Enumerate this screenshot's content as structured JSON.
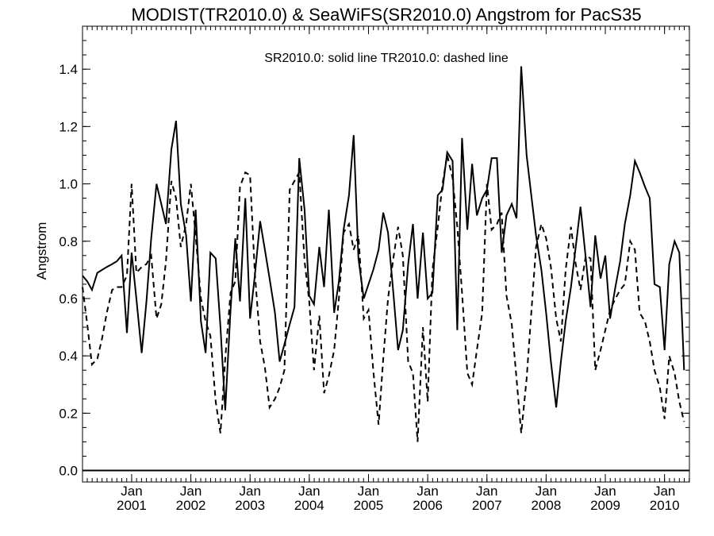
{
  "chart_data": {
    "type": "line",
    "title": "MODIST(TR2010.0) & SeaWiFS(SR2010.0)  Angstrom for PacS35",
    "annotation": "SR2010.0: solid line   TR2010.0: dashed line",
    "ylabel": "Angstrom",
    "xlim": [
      2000.17,
      2010.42
    ],
    "ylim": [
      -0.04,
      1.55
    ],
    "yticks": [
      0.0,
      0.2,
      0.4,
      0.6,
      0.8,
      1.0,
      1.2,
      1.4
    ],
    "ytick_labels": [
      "0.0",
      "0.2",
      "0.4",
      "0.6",
      "0.8",
      "1.0",
      "1.2",
      "1.4"
    ],
    "xticks": [
      {
        "x": 2001.0,
        "line1": "Jan",
        "line2": "2001"
      },
      {
        "x": 2002.0,
        "line1": "Jan",
        "line2": "2002"
      },
      {
        "x": 2003.0,
        "line1": "Jan",
        "line2": "2003"
      },
      {
        "x": 2004.0,
        "line1": "Jan",
        "line2": "2004"
      },
      {
        "x": 2005.0,
        "line1": "Jan",
        "line2": "2005"
      },
      {
        "x": 2006.0,
        "line1": "Jan",
        "line2": "2006"
      },
      {
        "x": 2007.0,
        "line1": "Jan",
        "line2": "2007"
      },
      {
        "x": 2008.0,
        "line1": "Jan",
        "line2": "2008"
      },
      {
        "x": 2009.0,
        "line1": "Jan",
        "line2": "2009"
      },
      {
        "x": 2010.0,
        "line1": "Jan",
        "line2": "2010"
      }
    ],
    "zero_line": 0.0,
    "series": [
      {
        "name": "SR2010.0",
        "style": "solid",
        "color": "#000000",
        "points": [
          [
            2000.17,
            0.68
          ],
          [
            2000.25,
            0.66
          ],
          [
            2000.33,
            0.63
          ],
          [
            2000.42,
            0.69
          ],
          [
            2000.5,
            0.7
          ],
          [
            2000.58,
            0.71
          ],
          [
            2000.67,
            0.72
          ],
          [
            2000.75,
            0.73
          ],
          [
            2000.83,
            0.75
          ],
          [
            2000.92,
            0.48
          ],
          [
            2001.0,
            0.76
          ],
          [
            2001.08,
            0.6
          ],
          [
            2001.17,
            0.41
          ],
          [
            2001.25,
            0.59
          ],
          [
            2001.33,
            0.81
          ],
          [
            2001.42,
            1.0
          ],
          [
            2001.5,
            0.93
          ],
          [
            2001.58,
            0.86
          ],
          [
            2001.67,
            1.12
          ],
          [
            2001.75,
            1.22
          ],
          [
            2001.83,
            0.93
          ],
          [
            2001.92,
            0.82
          ],
          [
            2002.0,
            0.59
          ],
          [
            2002.08,
            0.91
          ],
          [
            2002.17,
            0.52
          ],
          [
            2002.25,
            0.41
          ],
          [
            2002.33,
            0.76
          ],
          [
            2002.42,
            0.74
          ],
          [
            2002.5,
            0.5
          ],
          [
            2002.58,
            0.21
          ],
          [
            2002.67,
            0.56
          ],
          [
            2002.75,
            0.81
          ],
          [
            2002.83,
            0.59
          ],
          [
            2002.92,
            0.95
          ],
          [
            2003.0,
            0.53
          ],
          [
            2003.08,
            0.68
          ],
          [
            2003.17,
            0.87
          ],
          [
            2003.25,
            0.77
          ],
          [
            2003.33,
            0.67
          ],
          [
            2003.42,
            0.55
          ],
          [
            2003.5,
            0.38
          ],
          [
            2003.58,
            0.44
          ],
          [
            2003.67,
            0.51
          ],
          [
            2003.75,
            0.57
          ],
          [
            2003.83,
            1.09
          ],
          [
            2003.92,
            0.91
          ],
          [
            2004.0,
            0.61
          ],
          [
            2004.08,
            0.58
          ],
          [
            2004.17,
            0.78
          ],
          [
            2004.25,
            0.64
          ],
          [
            2004.33,
            0.91
          ],
          [
            2004.42,
            0.55
          ],
          [
            2004.5,
            0.66
          ],
          [
            2004.58,
            0.84
          ],
          [
            2004.67,
            0.96
          ],
          [
            2004.75,
            1.17
          ],
          [
            2004.83,
            0.74
          ],
          [
            2004.92,
            0.6
          ],
          [
            2005.0,
            0.65
          ],
          [
            2005.08,
            0.7
          ],
          [
            2005.17,
            0.77
          ],
          [
            2005.25,
            0.9
          ],
          [
            2005.33,
            0.83
          ],
          [
            2005.42,
            0.62
          ],
          [
            2005.5,
            0.42
          ],
          [
            2005.58,
            0.49
          ],
          [
            2005.67,
            0.72
          ],
          [
            2005.75,
            0.86
          ],
          [
            2005.83,
            0.6
          ],
          [
            2005.92,
            0.83
          ],
          [
            2006.0,
            0.6
          ],
          [
            2006.08,
            0.62
          ],
          [
            2006.17,
            0.96
          ],
          [
            2006.25,
            0.98
          ],
          [
            2006.33,
            1.11
          ],
          [
            2006.42,
            1.08
          ],
          [
            2006.5,
            0.49
          ],
          [
            2006.58,
            1.16
          ],
          [
            2006.67,
            0.84
          ],
          [
            2006.75,
            1.07
          ],
          [
            2006.83,
            0.89
          ],
          [
            2006.92,
            0.95
          ],
          [
            2007.0,
            0.98
          ],
          [
            2007.08,
            1.09
          ],
          [
            2007.17,
            1.09
          ],
          [
            2007.25,
            0.76
          ],
          [
            2007.33,
            0.89
          ],
          [
            2007.42,
            0.93
          ],
          [
            2007.5,
            0.88
          ],
          [
            2007.58,
            1.41
          ],
          [
            2007.67,
            1.1
          ],
          [
            2007.75,
            0.96
          ],
          [
            2007.83,
            0.82
          ],
          [
            2007.92,
            0.7
          ],
          [
            2008.0,
            0.55
          ],
          [
            2008.08,
            0.38
          ],
          [
            2008.17,
            0.22
          ],
          [
            2008.25,
            0.38
          ],
          [
            2008.33,
            0.52
          ],
          [
            2008.42,
            0.64
          ],
          [
            2008.5,
            0.78
          ],
          [
            2008.58,
            0.92
          ],
          [
            2008.67,
            0.74
          ],
          [
            2008.75,
            0.57
          ],
          [
            2008.83,
            0.82
          ],
          [
            2008.92,
            0.67
          ],
          [
            2009.0,
            0.75
          ],
          [
            2009.08,
            0.53
          ],
          [
            2009.17,
            0.64
          ],
          [
            2009.25,
            0.73
          ],
          [
            2009.33,
            0.86
          ],
          [
            2009.42,
            0.96
          ],
          [
            2009.5,
            1.08
          ],
          [
            2009.58,
            1.04
          ],
          [
            2009.67,
            0.99
          ],
          [
            2009.75,
            0.95
          ],
          [
            2009.83,
            0.65
          ],
          [
            2009.92,
            0.64
          ],
          [
            2010.0,
            0.42
          ],
          [
            2010.08,
            0.72
          ],
          [
            2010.17,
            0.8
          ],
          [
            2010.25,
            0.76
          ],
          [
            2010.33,
            0.35
          ]
        ]
      },
      {
        "name": "TR2010.0",
        "style": "dashed",
        "color": "#000000",
        "points": [
          [
            2000.17,
            0.64
          ],
          [
            2000.25,
            0.51
          ],
          [
            2000.33,
            0.37
          ],
          [
            2000.42,
            0.39
          ],
          [
            2000.5,
            0.46
          ],
          [
            2000.58,
            0.55
          ],
          [
            2000.67,
            0.63
          ],
          [
            2000.75,
            0.64
          ],
          [
            2000.83,
            0.64
          ],
          [
            2000.92,
            0.68
          ],
          [
            2001.0,
            1.0
          ],
          [
            2001.08,
            0.69
          ],
          [
            2001.17,
            0.71
          ],
          [
            2001.25,
            0.72
          ],
          [
            2001.33,
            0.75
          ],
          [
            2001.42,
            0.53
          ],
          [
            2001.5,
            0.58
          ],
          [
            2001.58,
            0.73
          ],
          [
            2001.67,
            1.01
          ],
          [
            2001.75,
            0.95
          ],
          [
            2001.83,
            0.78
          ],
          [
            2001.92,
            0.86
          ],
          [
            2002.0,
            1.0
          ],
          [
            2002.08,
            0.82
          ],
          [
            2002.17,
            0.6
          ],
          [
            2002.25,
            0.52
          ],
          [
            2002.33,
            0.47
          ],
          [
            2002.42,
            0.24
          ],
          [
            2002.5,
            0.13
          ],
          [
            2002.58,
            0.39
          ],
          [
            2002.67,
            0.62
          ],
          [
            2002.75,
            0.66
          ],
          [
            2002.83,
            0.99
          ],
          [
            2002.92,
            1.04
          ],
          [
            2003.0,
            1.03
          ],
          [
            2003.08,
            0.69
          ],
          [
            2003.17,
            0.45
          ],
          [
            2003.25,
            0.36
          ],
          [
            2003.33,
            0.22
          ],
          [
            2003.42,
            0.25
          ],
          [
            2003.5,
            0.29
          ],
          [
            2003.58,
            0.35
          ],
          [
            2003.67,
            0.98
          ],
          [
            2003.75,
            1.01
          ],
          [
            2003.83,
            1.04
          ],
          [
            2003.92,
            0.73
          ],
          [
            2004.0,
            0.59
          ],
          [
            2004.08,
            0.35
          ],
          [
            2004.17,
            0.54
          ],
          [
            2004.25,
            0.27
          ],
          [
            2004.33,
            0.33
          ],
          [
            2004.42,
            0.42
          ],
          [
            2004.5,
            0.6
          ],
          [
            2004.58,
            0.83
          ],
          [
            2004.67,
            0.86
          ],
          [
            2004.75,
            0.77
          ],
          [
            2004.83,
            0.82
          ],
          [
            2004.92,
            0.53
          ],
          [
            2005.0,
            0.56
          ],
          [
            2005.08,
            0.35
          ],
          [
            2005.17,
            0.16
          ],
          [
            2005.25,
            0.39
          ],
          [
            2005.33,
            0.6
          ],
          [
            2005.42,
            0.74
          ],
          [
            2005.5,
            0.85
          ],
          [
            2005.58,
            0.75
          ],
          [
            2005.67,
            0.38
          ],
          [
            2005.75,
            0.34
          ],
          [
            2005.83,
            0.1
          ],
          [
            2005.92,
            0.5
          ],
          [
            2006.0,
            0.24
          ],
          [
            2006.08,
            0.7
          ],
          [
            2006.17,
            0.85
          ],
          [
            2006.25,
            1.0
          ],
          [
            2006.33,
            1.1
          ],
          [
            2006.42,
            1.02
          ],
          [
            2006.5,
            0.85
          ],
          [
            2006.58,
            0.62
          ],
          [
            2006.67,
            0.34
          ],
          [
            2006.75,
            0.3
          ],
          [
            2006.83,
            0.42
          ],
          [
            2006.92,
            0.55
          ],
          [
            2007.0,
            1.0
          ],
          [
            2007.08,
            0.84
          ],
          [
            2007.17,
            0.86
          ],
          [
            2007.25,
            0.9
          ],
          [
            2007.33,
            0.61
          ],
          [
            2007.42,
            0.51
          ],
          [
            2007.5,
            0.32
          ],
          [
            2007.58,
            0.13
          ],
          [
            2007.67,
            0.32
          ],
          [
            2007.75,
            0.55
          ],
          [
            2007.83,
            0.78
          ],
          [
            2007.92,
            0.86
          ],
          [
            2008.0,
            0.81
          ],
          [
            2008.08,
            0.71
          ],
          [
            2008.17,
            0.53
          ],
          [
            2008.25,
            0.45
          ],
          [
            2008.33,
            0.7
          ],
          [
            2008.42,
            0.85
          ],
          [
            2008.5,
            0.72
          ],
          [
            2008.58,
            0.63
          ],
          [
            2008.67,
            0.75
          ],
          [
            2008.75,
            0.74
          ],
          [
            2008.83,
            0.35
          ],
          [
            2008.92,
            0.42
          ],
          [
            2009.0,
            0.49
          ],
          [
            2009.08,
            0.56
          ],
          [
            2009.17,
            0.6
          ],
          [
            2009.25,
            0.63
          ],
          [
            2009.33,
            0.65
          ],
          [
            2009.42,
            0.8
          ],
          [
            2009.5,
            0.77
          ],
          [
            2009.58,
            0.55
          ],
          [
            2009.67,
            0.52
          ],
          [
            2009.75,
            0.45
          ],
          [
            2009.83,
            0.35
          ],
          [
            2009.92,
            0.29
          ],
          [
            2010.0,
            0.18
          ],
          [
            2010.08,
            0.4
          ],
          [
            2010.17,
            0.34
          ],
          [
            2010.25,
            0.24
          ],
          [
            2010.33,
            0.17
          ]
        ]
      }
    ]
  }
}
